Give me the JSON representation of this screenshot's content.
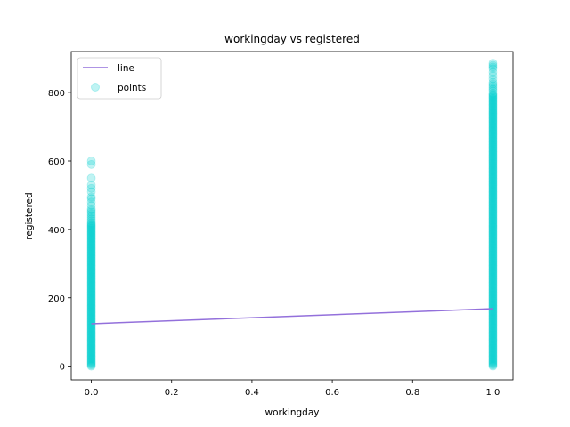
{
  "chart_data": {
    "type": "scatter",
    "title": "workingday vs registered",
    "xlabel": "workingday",
    "ylabel": "registered",
    "xlim": [
      -0.05,
      1.05
    ],
    "ylim": [
      -40,
      920
    ],
    "xticks": [
      "0.0",
      "0.2",
      "0.4",
      "0.6",
      "0.8",
      "1.0"
    ],
    "yticks": [
      "0",
      "200",
      "400",
      "600",
      "800"
    ],
    "grid": false,
    "legend_position": "top-left",
    "line_series": {
      "name": "line",
      "color": "#9370db",
      "x": [
        0.0,
        1.0
      ],
      "y": [
        124,
        168
      ]
    },
    "scatter_series": {
      "name": "points",
      "color": "#00ced1",
      "opacity": 0.25,
      "groups": [
        {
          "x": 0.0,
          "y_dense_range": [
            0,
            420
          ],
          "y_sparse": [
            425,
            430,
            435,
            440,
            445,
            450,
            455,
            460,
            470,
            480,
            490,
            495,
            510,
            520,
            530,
            550,
            590,
            600
          ]
        },
        {
          "x": 1.0,
          "y_dense_range": [
            0,
            800
          ],
          "y_sparse": [
            805,
            810,
            815,
            820,
            825,
            830,
            840,
            850,
            860,
            870,
            875,
            880,
            886
          ]
        }
      ]
    }
  }
}
